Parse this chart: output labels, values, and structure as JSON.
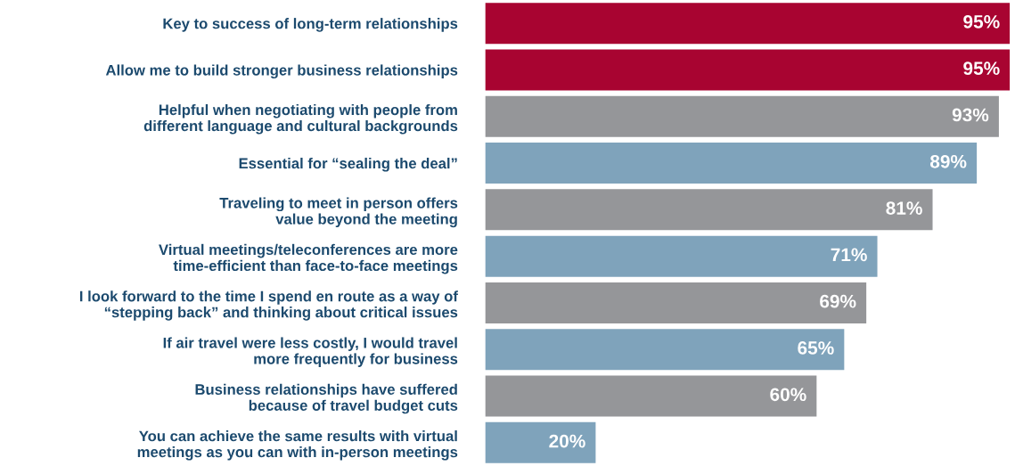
{
  "chart_data": {
    "type": "bar",
    "orientation": "horizontal",
    "value_labels": [
      "95%",
      "95%",
      "93%",
      "89%",
      "81%",
      "71%",
      "69%",
      "65%",
      "60%",
      "20%"
    ],
    "categories": [
      "Key to success of long-term relationships",
      "Allow me to build stronger business relationships",
      "Helpful when negotiating with people from\ndifferent language and cultural backgrounds",
      "Essential for “sealing the deal”",
      "Traveling to meet in person offers\nvalue beyond the meeting",
      "Virtual meetings/teleconferences are more\ntime-efficient than face-to-face meetings",
      "I look forward to the time I spend en route as a way of\n“stepping back” and thinking about critical issues",
      "If air travel were less costly, I would travel\nmore frequently for business",
      "Business relationships have suffered\nbecause of travel budget cuts",
      "You can achieve the same results with virtual\nmeetings as you can with in-person meetings"
    ],
    "values": [
      95,
      95,
      93,
      89,
      81,
      71,
      69,
      65,
      60,
      20
    ],
    "colors": [
      "#a80431",
      "#a80431",
      "#959699",
      "#7fa3bb",
      "#959699",
      "#7fa3bb",
      "#959699",
      "#7fa3bb",
      "#959699",
      "#7fa3bb"
    ]
  }
}
